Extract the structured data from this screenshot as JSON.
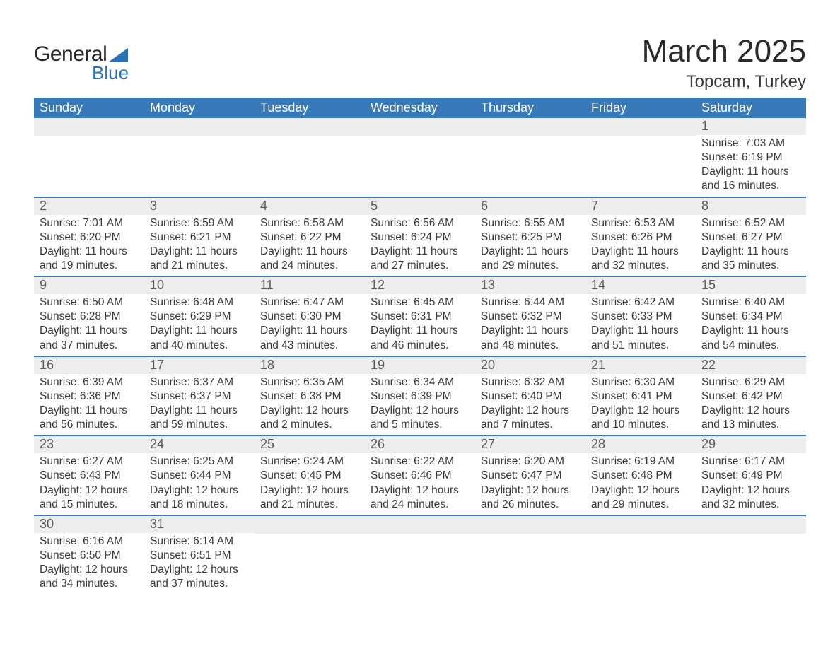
{
  "brand": {
    "word1": "General",
    "word2": "Blue"
  },
  "title": "March 2025",
  "location": "Topcam, Turkey",
  "colors": {
    "header_bg": "#3879b9",
    "header_text": "#ffffff",
    "daynum_bg": "#ededed",
    "daynum_text": "#595959",
    "body_text": "#3a3a3a",
    "row_divider": "#3879b9",
    "logo_accent": "#2a71b8",
    "page_bg": "#ffffff"
  },
  "typography": {
    "title_fontsize": 44,
    "location_fontsize": 24,
    "header_fontsize": 18,
    "daynum_fontsize": 18,
    "detail_fontsize": 15.5
  },
  "day_names": [
    "Sunday",
    "Monday",
    "Tuesday",
    "Wednesday",
    "Thursday",
    "Friday",
    "Saturday"
  ],
  "weeks": [
    [
      null,
      null,
      null,
      null,
      null,
      null,
      {
        "n": "1",
        "sr": "Sunrise: 7:03 AM",
        "ss": "Sunset: 6:19 PM",
        "d1": "Daylight: 11 hours",
        "d2": "and 16 minutes."
      }
    ],
    [
      {
        "n": "2",
        "sr": "Sunrise: 7:01 AM",
        "ss": "Sunset: 6:20 PM",
        "d1": "Daylight: 11 hours",
        "d2": "and 19 minutes."
      },
      {
        "n": "3",
        "sr": "Sunrise: 6:59 AM",
        "ss": "Sunset: 6:21 PM",
        "d1": "Daylight: 11 hours",
        "d2": "and 21 minutes."
      },
      {
        "n": "4",
        "sr": "Sunrise: 6:58 AM",
        "ss": "Sunset: 6:22 PM",
        "d1": "Daylight: 11 hours",
        "d2": "and 24 minutes."
      },
      {
        "n": "5",
        "sr": "Sunrise: 6:56 AM",
        "ss": "Sunset: 6:24 PM",
        "d1": "Daylight: 11 hours",
        "d2": "and 27 minutes."
      },
      {
        "n": "6",
        "sr": "Sunrise: 6:55 AM",
        "ss": "Sunset: 6:25 PM",
        "d1": "Daylight: 11 hours",
        "d2": "and 29 minutes."
      },
      {
        "n": "7",
        "sr": "Sunrise: 6:53 AM",
        "ss": "Sunset: 6:26 PM",
        "d1": "Daylight: 11 hours",
        "d2": "and 32 minutes."
      },
      {
        "n": "8",
        "sr": "Sunrise: 6:52 AM",
        "ss": "Sunset: 6:27 PM",
        "d1": "Daylight: 11 hours",
        "d2": "and 35 minutes."
      }
    ],
    [
      {
        "n": "9",
        "sr": "Sunrise: 6:50 AM",
        "ss": "Sunset: 6:28 PM",
        "d1": "Daylight: 11 hours",
        "d2": "and 37 minutes."
      },
      {
        "n": "10",
        "sr": "Sunrise: 6:48 AM",
        "ss": "Sunset: 6:29 PM",
        "d1": "Daylight: 11 hours",
        "d2": "and 40 minutes."
      },
      {
        "n": "11",
        "sr": "Sunrise: 6:47 AM",
        "ss": "Sunset: 6:30 PM",
        "d1": "Daylight: 11 hours",
        "d2": "and 43 minutes."
      },
      {
        "n": "12",
        "sr": "Sunrise: 6:45 AM",
        "ss": "Sunset: 6:31 PM",
        "d1": "Daylight: 11 hours",
        "d2": "and 46 minutes."
      },
      {
        "n": "13",
        "sr": "Sunrise: 6:44 AM",
        "ss": "Sunset: 6:32 PM",
        "d1": "Daylight: 11 hours",
        "d2": "and 48 minutes."
      },
      {
        "n": "14",
        "sr": "Sunrise: 6:42 AM",
        "ss": "Sunset: 6:33 PM",
        "d1": "Daylight: 11 hours",
        "d2": "and 51 minutes."
      },
      {
        "n": "15",
        "sr": "Sunrise: 6:40 AM",
        "ss": "Sunset: 6:34 PM",
        "d1": "Daylight: 11 hours",
        "d2": "and 54 minutes."
      }
    ],
    [
      {
        "n": "16",
        "sr": "Sunrise: 6:39 AM",
        "ss": "Sunset: 6:36 PM",
        "d1": "Daylight: 11 hours",
        "d2": "and 56 minutes."
      },
      {
        "n": "17",
        "sr": "Sunrise: 6:37 AM",
        "ss": "Sunset: 6:37 PM",
        "d1": "Daylight: 11 hours",
        "d2": "and 59 minutes."
      },
      {
        "n": "18",
        "sr": "Sunrise: 6:35 AM",
        "ss": "Sunset: 6:38 PM",
        "d1": "Daylight: 12 hours",
        "d2": "and 2 minutes."
      },
      {
        "n": "19",
        "sr": "Sunrise: 6:34 AM",
        "ss": "Sunset: 6:39 PM",
        "d1": "Daylight: 12 hours",
        "d2": "and 5 minutes."
      },
      {
        "n": "20",
        "sr": "Sunrise: 6:32 AM",
        "ss": "Sunset: 6:40 PM",
        "d1": "Daylight: 12 hours",
        "d2": "and 7 minutes."
      },
      {
        "n": "21",
        "sr": "Sunrise: 6:30 AM",
        "ss": "Sunset: 6:41 PM",
        "d1": "Daylight: 12 hours",
        "d2": "and 10 minutes."
      },
      {
        "n": "22",
        "sr": "Sunrise: 6:29 AM",
        "ss": "Sunset: 6:42 PM",
        "d1": "Daylight: 12 hours",
        "d2": "and 13 minutes."
      }
    ],
    [
      {
        "n": "23",
        "sr": "Sunrise: 6:27 AM",
        "ss": "Sunset: 6:43 PM",
        "d1": "Daylight: 12 hours",
        "d2": "and 15 minutes."
      },
      {
        "n": "24",
        "sr": "Sunrise: 6:25 AM",
        "ss": "Sunset: 6:44 PM",
        "d1": "Daylight: 12 hours",
        "d2": "and 18 minutes."
      },
      {
        "n": "25",
        "sr": "Sunrise: 6:24 AM",
        "ss": "Sunset: 6:45 PM",
        "d1": "Daylight: 12 hours",
        "d2": "and 21 minutes."
      },
      {
        "n": "26",
        "sr": "Sunrise: 6:22 AM",
        "ss": "Sunset: 6:46 PM",
        "d1": "Daylight: 12 hours",
        "d2": "and 24 minutes."
      },
      {
        "n": "27",
        "sr": "Sunrise: 6:20 AM",
        "ss": "Sunset: 6:47 PM",
        "d1": "Daylight: 12 hours",
        "d2": "and 26 minutes."
      },
      {
        "n": "28",
        "sr": "Sunrise: 6:19 AM",
        "ss": "Sunset: 6:48 PM",
        "d1": "Daylight: 12 hours",
        "d2": "and 29 minutes."
      },
      {
        "n": "29",
        "sr": "Sunrise: 6:17 AM",
        "ss": "Sunset: 6:49 PM",
        "d1": "Daylight: 12 hours",
        "d2": "and 32 minutes."
      }
    ],
    [
      {
        "n": "30",
        "sr": "Sunrise: 6:16 AM",
        "ss": "Sunset: 6:50 PM",
        "d1": "Daylight: 12 hours",
        "d2": "and 34 minutes."
      },
      {
        "n": "31",
        "sr": "Sunrise: 6:14 AM",
        "ss": "Sunset: 6:51 PM",
        "d1": "Daylight: 12 hours",
        "d2": "and 37 minutes."
      },
      null,
      null,
      null,
      null,
      null
    ]
  ]
}
